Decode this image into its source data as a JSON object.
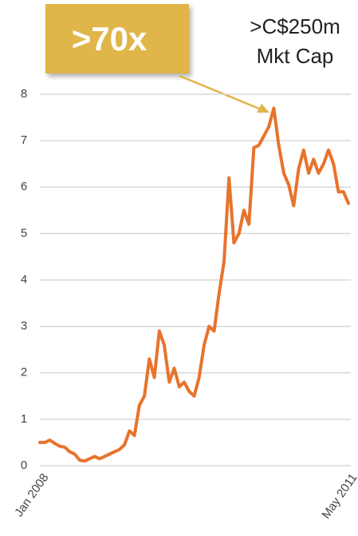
{
  "chart_data": {
    "type": "line",
    "annotations": [
      ">70x",
      ">C$250m",
      "Mkt Cap"
    ],
    "categories": [
      "Jan 2008",
      null,
      null,
      null,
      null,
      null,
      null,
      null,
      null,
      null,
      null,
      null,
      null,
      null,
      null,
      null,
      null,
      null,
      null,
      null,
      null,
      null,
      null,
      null,
      null,
      null,
      null,
      null,
      null,
      null,
      null,
      null,
      null,
      null,
      null,
      null,
      null,
      null,
      null,
      null,
      null,
      null,
      null,
      null,
      null,
      null,
      null,
      null,
      null,
      null,
      null,
      null,
      null,
      null,
      null,
      null,
      null,
      null,
      null,
      null,
      null,
      null,
      "May 2011"
    ],
    "values": [
      0.5,
      0.5,
      0.55,
      0.48,
      0.42,
      0.4,
      0.3,
      0.25,
      0.12,
      0.1,
      0.15,
      0.2,
      0.15,
      0.2,
      0.25,
      0.3,
      0.35,
      0.45,
      0.75,
      0.65,
      1.3,
      1.5,
      2.3,
      1.9,
      2.9,
      2.6,
      1.8,
      2.1,
      1.7,
      1.8,
      1.6,
      1.5,
      1.9,
      2.6,
      3.0,
      2.9,
      3.7,
      4.4,
      6.2,
      4.8,
      5.0,
      5.5,
      5.2,
      6.85,
      6.9,
      7.1,
      7.3,
      7.7,
      6.9,
      6.3,
      6.05,
      5.6,
      6.4,
      6.8,
      6.3,
      6.6,
      6.3,
      6.5,
      6.8,
      6.5,
      5.9,
      5.9,
      5.65
    ],
    "color": "#e8732c",
    "ylim": [
      0,
      8
    ],
    "yticks": [
      0,
      1,
      2,
      3,
      4,
      5,
      6,
      7,
      8
    ],
    "grid": true
  }
}
